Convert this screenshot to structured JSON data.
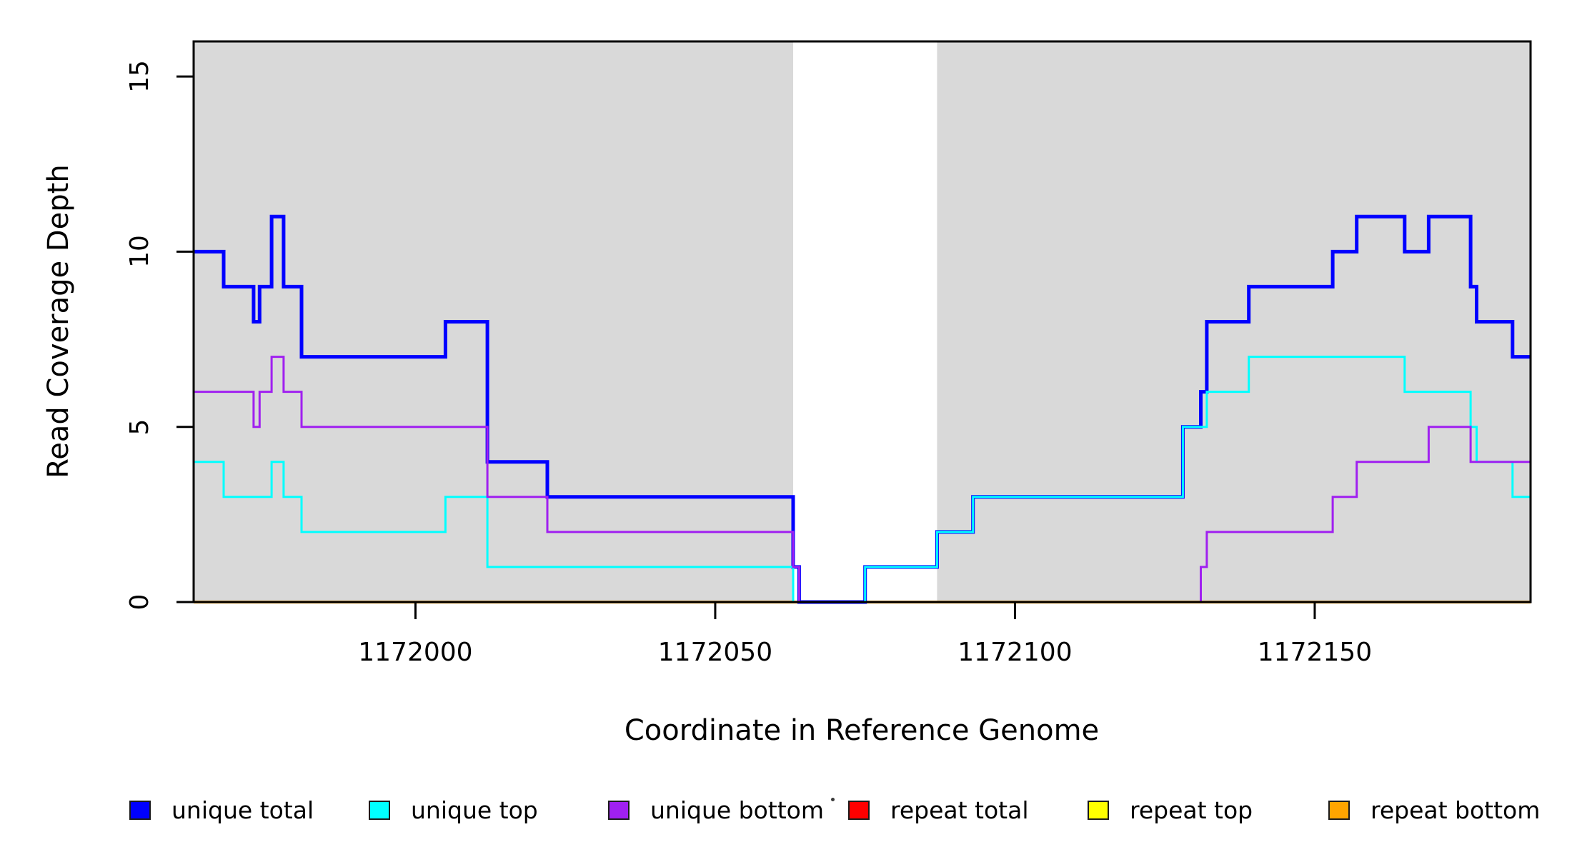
{
  "figure": {
    "xlabel": "Coordinate in Reference Genome",
    "ylabel": "Read Coverage Depth"
  },
  "legend": {
    "items": [
      {
        "label": "unique total",
        "color": "#0000ff"
      },
      {
        "label": "unique top",
        "color": "#00ffff"
      },
      {
        "label": "unique bottom",
        "color": "#a020f0"
      },
      {
        "label": "repeat total",
        "color": "#ff0000"
      },
      {
        "label": "repeat top",
        "color": "#ffff00"
      },
      {
        "label": "repeat bottom",
        "color": "#ffa500"
      }
    ]
  },
  "chart_data": {
    "type": "line",
    "subtype": "step-coverage",
    "title": "",
    "xlabel": "Coordinate in Reference Genome",
    "ylabel": "Read Coverage Depth",
    "xlim": [
      1171963,
      1172186
    ],
    "ylim": [
      0,
      16
    ],
    "x_ticks": [
      1172000,
      1172050,
      1172100,
      1172150
    ],
    "y_ticks": [
      0,
      5,
      10,
      15
    ],
    "grid": false,
    "legend_position": "bottom",
    "plot_background": "#ffffff",
    "shaded_regions": {
      "color": "#d9d9d9",
      "comment_visible_meaning": "gray shaded intervals of the reference genome; white gap has near-zero coverage",
      "intervals": [
        [
          1171963,
          1172063
        ],
        [
          1172087,
          1172186
        ]
      ]
    },
    "series": [
      {
        "name": "unique total",
        "color": "#0000ff",
        "width": 5,
        "steps": [
          [
            1171963,
            10
          ],
          [
            1171968,
            9
          ],
          [
            1171973,
            8
          ],
          [
            1171974,
            9
          ],
          [
            1171976,
            11
          ],
          [
            1171978,
            9
          ],
          [
            1171981,
            7
          ],
          [
            1172005,
            8
          ],
          [
            1172012,
            4
          ],
          [
            1172022,
            3
          ],
          [
            1172063,
            1
          ],
          [
            1172064,
            0
          ],
          [
            1172075,
            1
          ],
          [
            1172087,
            2
          ],
          [
            1172093,
            3
          ],
          [
            1172128,
            5
          ],
          [
            1172131,
            6
          ],
          [
            1172132,
            8
          ],
          [
            1172139,
            9
          ],
          [
            1172153,
            10
          ],
          [
            1172157,
            11
          ],
          [
            1172165,
            10
          ],
          [
            1172169,
            11
          ],
          [
            1172176,
            9
          ],
          [
            1172177,
            8
          ],
          [
            1172183,
            7
          ]
        ]
      },
      {
        "name": "unique top",
        "color": "#00ffff",
        "width": 3,
        "steps": [
          [
            1171963,
            4
          ],
          [
            1171968,
            3
          ],
          [
            1171976,
            4
          ],
          [
            1171978,
            3
          ],
          [
            1171981,
            2
          ],
          [
            1172005,
            3
          ],
          [
            1172012,
            1
          ],
          [
            1172063,
            0
          ],
          [
            1172075,
            1
          ],
          [
            1172087,
            2
          ],
          [
            1172093,
            3
          ],
          [
            1172128,
            5
          ],
          [
            1172132,
            6
          ],
          [
            1172139,
            7
          ],
          [
            1172165,
            6
          ],
          [
            1172176,
            5
          ],
          [
            1172177,
            4
          ],
          [
            1172183,
            3
          ]
        ]
      },
      {
        "name": "unique bottom",
        "color": "#a020f0",
        "width": 3,
        "steps": [
          [
            1171963,
            6
          ],
          [
            1171973,
            5
          ],
          [
            1171974,
            6
          ],
          [
            1171976,
            7
          ],
          [
            1171978,
            6
          ],
          [
            1171981,
            5
          ],
          [
            1172012,
            3
          ],
          [
            1172022,
            2
          ],
          [
            1172063,
            1
          ],
          [
            1172064,
            0
          ],
          [
            1172131,
            1
          ],
          [
            1172132,
            2
          ],
          [
            1172153,
            3
          ],
          [
            1172157,
            4
          ],
          [
            1172169,
            5
          ],
          [
            1172176,
            4
          ]
        ]
      },
      {
        "name": "repeat total",
        "color": "#ff0000",
        "width": 3,
        "steps": [
          [
            1171963,
            0
          ]
        ]
      },
      {
        "name": "repeat top",
        "color": "#ffff00",
        "width": 3,
        "steps": [
          [
            1171963,
            0
          ]
        ]
      },
      {
        "name": "repeat bottom",
        "color": "#ffa500",
        "width": 4,
        "steps": [
          [
            1171963,
            0
          ]
        ]
      }
    ],
    "draw_order": [
      "repeat total",
      "repeat top",
      "repeat bottom",
      "unique total",
      "unique top",
      "unique bottom"
    ]
  }
}
